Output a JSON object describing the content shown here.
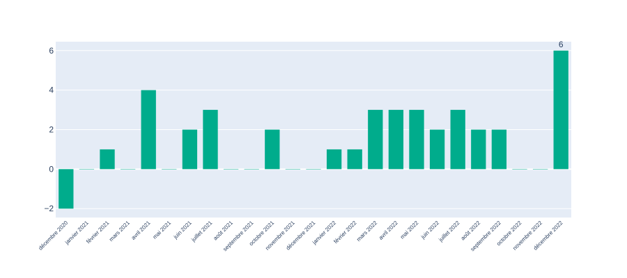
{
  "chart_data": {
    "type": "bar",
    "categories": [
      "décembre 2020",
      "janvier 2021",
      "février 2021",
      "mars 2021",
      "avril 2021",
      "mai 2021",
      "juin 2021",
      "juillet 2021",
      "août 2021",
      "septembre 2021",
      "octobre 2021",
      "novembre 2021",
      "décembre 2021",
      "janvier 2022",
      "février 2022",
      "mars 2022",
      "avril 2022",
      "mai 2022",
      "juin 2022",
      "juillet 2022",
      "août 2022",
      "septembre 2022",
      "octobre 2022",
      "novembre 2022",
      "décembre 2022"
    ],
    "values": [
      -2,
      0,
      1,
      0,
      4,
      0,
      2,
      3,
      0,
      0,
      2,
      0,
      0,
      1,
      1,
      3,
      3,
      3,
      2,
      3,
      2,
      2,
      0,
      0,
      6
    ],
    "yticks": [
      -2,
      0,
      2,
      4,
      6
    ],
    "ylim": [
      -2.45,
      6.45
    ],
    "data_labels": [
      {
        "category": "décembre 2022",
        "text": "6"
      }
    ],
    "title": "",
    "xlabel": "",
    "ylabel": "",
    "grid": true,
    "colors": {
      "bar": "#00AC8C",
      "plot_bg": "#E5ECF6",
      "grid": "#ffffff",
      "text": "#2a3f5f"
    }
  }
}
